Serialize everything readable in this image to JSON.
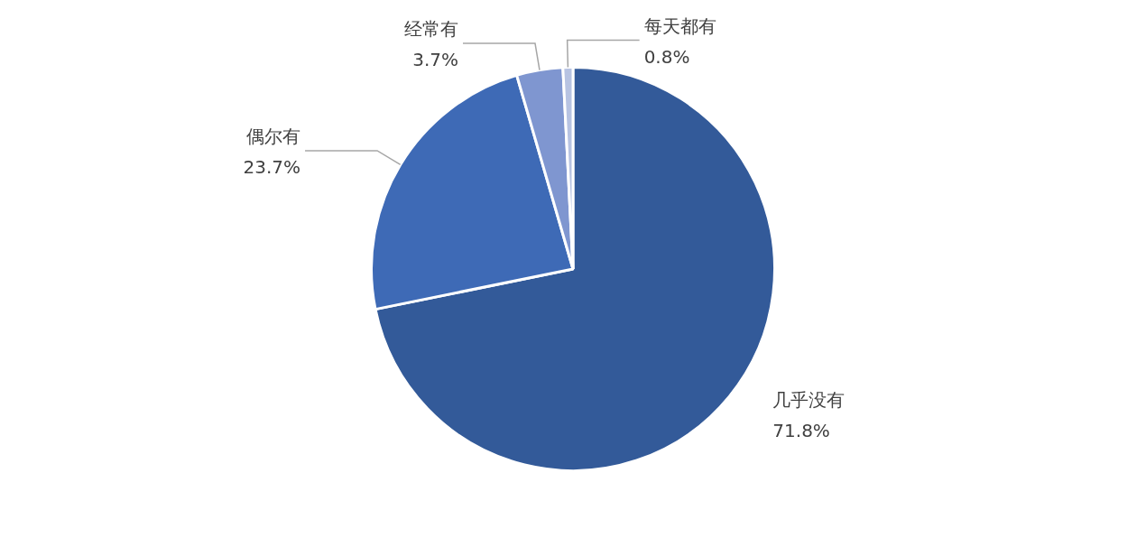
{
  "chart_data": {
    "type": "pie",
    "categories": [
      "几乎没有",
      "偶尔有",
      "经常有",
      "每天都有"
    ],
    "values": [
      71.8,
      23.7,
      3.7,
      0.8
    ],
    "value_labels": [
      "71.8%",
      "23.7%",
      "3.7%",
      "0.8%"
    ],
    "colors": [
      "#335a99",
      "#3e6ab6",
      "#7f96d0",
      "#b7c3e2"
    ],
    "legend": false
  }
}
